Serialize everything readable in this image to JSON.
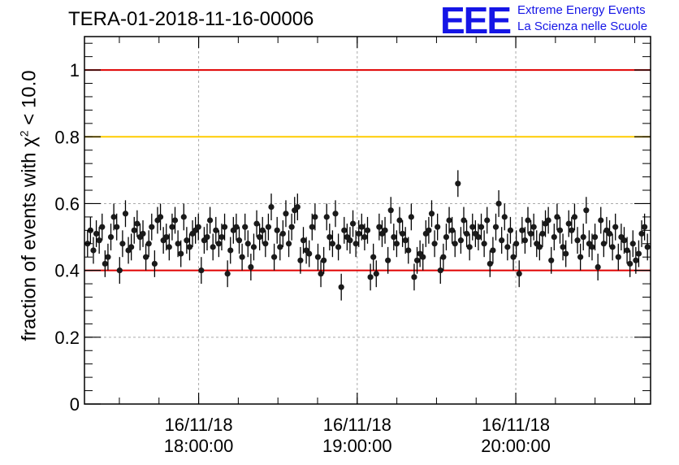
{
  "chart_data": {
    "type": "scatter",
    "title": "TERA-01-2018-11-16-00006",
    "ylabel": {
      "prefix": "fraction of events with ",
      "symbol": "χ",
      "superscript": "2",
      "suffix": " < 10.0"
    },
    "xlabel": "",
    "ylim": [
      0,
      1.1
    ],
    "yticks": [
      "0",
      "0.2",
      "0.4",
      "0.6",
      "0.8",
      "1"
    ],
    "ytick_values": [
      0,
      0.2,
      0.4,
      0.6,
      0.8,
      1.0
    ],
    "x_range_hours": [
      17.28,
      20.85
    ],
    "xticks": [
      {
        "value": 18.0,
        "date": "16/11/18",
        "time": "18:00:00"
      },
      {
        "value": 19.0,
        "date": "16/11/18",
        "time": "19:00:00"
      },
      {
        "value": 20.0,
        "date": "16/11/18",
        "time": "20:00:00"
      }
    ],
    "grid": true,
    "error_bar": 0.04,
    "reference_lines": [
      {
        "y": 1.0,
        "color": "#e00000"
      },
      {
        "y": 0.8,
        "color": "#ffcc00"
      },
      {
        "y": 0.4,
        "color": "#e00000"
      }
    ],
    "series": [
      {
        "marker_color": "#1a1a1a",
        "values": [
          0.48,
          0.52,
          0.46,
          0.51,
          0.49,
          0.53,
          0.42,
          0.44,
          0.5,
          0.56,
          0.53,
          0.4,
          0.48,
          0.57,
          0.46,
          0.47,
          0.52,
          0.54,
          0.5,
          0.51,
          0.44,
          0.48,
          0.53,
          0.42,
          0.55,
          0.56,
          0.49,
          0.5,
          0.47,
          0.53,
          0.55,
          0.48,
          0.45,
          0.56,
          0.49,
          0.47,
          0.51,
          0.52,
          0.53,
          0.4,
          0.49,
          0.5,
          0.55,
          0.47,
          0.52,
          0.48,
          0.5,
          0.53,
          0.39,
          0.46,
          0.52,
          0.53,
          0.49,
          0.44,
          0.53,
          0.48,
          0.41,
          0.47,
          0.54,
          0.5,
          0.52,
          0.48,
          0.53,
          0.59,
          0.44,
          0.52,
          0.47,
          0.51,
          0.57,
          0.48,
          0.53,
          0.58,
          0.59,
          0.43,
          0.49,
          0.46,
          0.45,
          0.53,
          0.56,
          0.44,
          0.39,
          0.43,
          0.56,
          0.5,
          0.48,
          0.57,
          0.47,
          0.35,
          0.52,
          0.5,
          0.49,
          0.54,
          0.48,
          0.51,
          0.53,
          0.5,
          0.52,
          0.38,
          0.44,
          0.39,
          0.53,
          0.51,
          0.52,
          0.43,
          0.58,
          0.5,
          0.48,
          0.55,
          0.51,
          0.49,
          0.46,
          0.56,
          0.38,
          0.43,
          0.45,
          0.44,
          0.51,
          0.52,
          0.57,
          0.48,
          0.53,
          0.4,
          0.44,
          0.5,
          0.55,
          0.52,
          0.48,
          0.66,
          0.49,
          0.55,
          0.51,
          0.47,
          0.53,
          0.51,
          0.5,
          0.53,
          0.48,
          0.55,
          0.42,
          0.46,
          0.53,
          0.6,
          0.49,
          0.56,
          0.47,
          0.52,
          0.44,
          0.48,
          0.39,
          0.52,
          0.49,
          0.55,
          0.51,
          0.53,
          0.48,
          0.47,
          0.51,
          0.54,
          0.55,
          0.43,
          0.5,
          0.56,
          0.52,
          0.47,
          0.45,
          0.54,
          0.52,
          0.56,
          0.49,
          0.44,
          0.5,
          0.58,
          0.48,
          0.47,
          0.5,
          0.41,
          0.55,
          0.48,
          0.52,
          0.51,
          0.47,
          0.53,
          0.44,
          0.5,
          0.49,
          0.46,
          0.42,
          0.48,
          0.43,
          0.45,
          0.51,
          0.53,
          0.47
        ]
      }
    ]
  },
  "logo": {
    "mark": "EEE",
    "line1": "Extreme Energy Events",
    "line2": "La Scienza nelle Scuole"
  }
}
